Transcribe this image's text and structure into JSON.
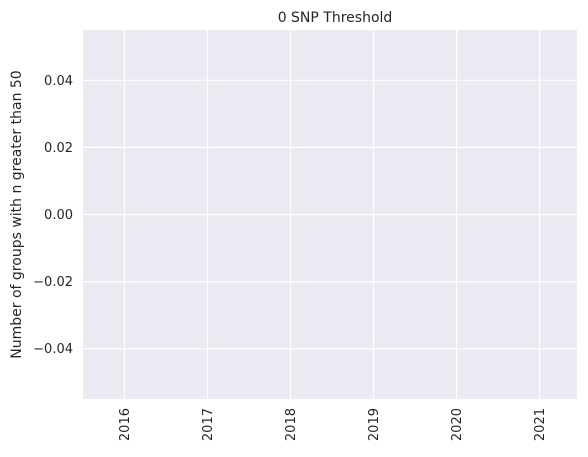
{
  "chart_data": {
    "type": "line",
    "title": "0 SNP Threshold",
    "xlabel": "",
    "ylabel": "Number of groups with n greater than 50",
    "x_ticks": [
      "2016",
      "2017",
      "2018",
      "2019",
      "2020",
      "2021"
    ],
    "y_ticks": [
      "0.04",
      "0.02",
      "0.00",
      "−0.02",
      "−0.04"
    ],
    "y_tick_values": [
      0.04,
      0.02,
      0.0,
      -0.02,
      -0.04
    ],
    "xlim": [
      2015.5,
      2021.45
    ],
    "ylim": [
      -0.055,
      0.055
    ],
    "series": [],
    "grid": true,
    "background_color": "#eaeaf2",
    "grid_color": "#ffffff"
  }
}
